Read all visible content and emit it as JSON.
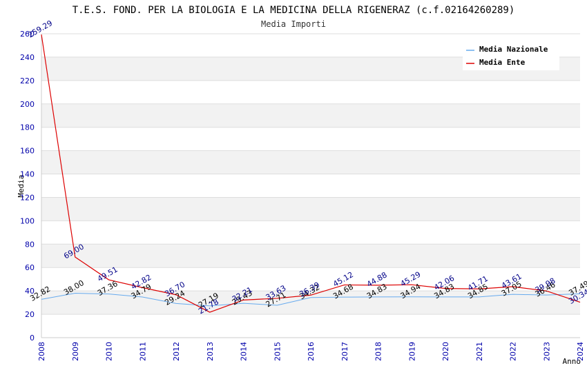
{
  "chart_data": {
    "type": "line",
    "title": "T.E.S. FOND. PER LA BIOLOGIA E LA MEDICINA DELLA RIGENERAZ (c.f.02164260289)",
    "subtitle": "Media Importi",
    "xlabel": "Anno",
    "ylabel": "Media",
    "ylim": [
      0,
      260
    ],
    "yticks": [
      0,
      20,
      40,
      60,
      80,
      100,
      120,
      140,
      160,
      180,
      200,
      220,
      240,
      260
    ],
    "categories": [
      "2008",
      "2009",
      "2010",
      "2011",
      "2012",
      "2013",
      "2014",
      "2015",
      "2016",
      "2017",
      "2018",
      "2019",
      "2020",
      "2021",
      "2022",
      "2023",
      "2024"
    ],
    "legend_position": "top-right",
    "series": [
      {
        "name": "Media Nazionale",
        "color": "#66aaee",
        "label_color": "#000000",
        "values": [
          32.82,
          38.0,
          37.36,
          34.79,
          29.24,
          27.19,
          29.43,
          27.71,
          34.32,
          34.68,
          34.83,
          34.94,
          34.83,
          34.85,
          37.05,
          36.46,
          37.49
        ],
        "labels": [
          "32.82",
          "38.00",
          "37.36",
          "34.79",
          "29.24",
          "27.19",
          "29.43",
          "27.71",
          "34.32",
          "34.68",
          "34.83",
          "34.94",
          "34.83",
          "34.85",
          "37.05",
          "36.46",
          "37.49"
        ]
      },
      {
        "name": "Media Ente",
        "color": "#dd0000",
        "label_color": "#000088",
        "values": [
          259.29,
          69.0,
          49.51,
          42.82,
          36.7,
          21.78,
          32.21,
          33.63,
          36.39,
          45.12,
          44.88,
          45.29,
          42.06,
          41.71,
          43.61,
          39.98,
          30.34
        ],
        "labels": [
          "259.29",
          "69.00",
          "49.51",
          "42.82",
          "36.70",
          "21.78",
          "32.21",
          "33.63",
          "36.39",
          "45.12",
          "44.88",
          "45.29",
          "42.06",
          "41.71",
          "43.61",
          "39.98",
          "30.34"
        ]
      }
    ]
  }
}
